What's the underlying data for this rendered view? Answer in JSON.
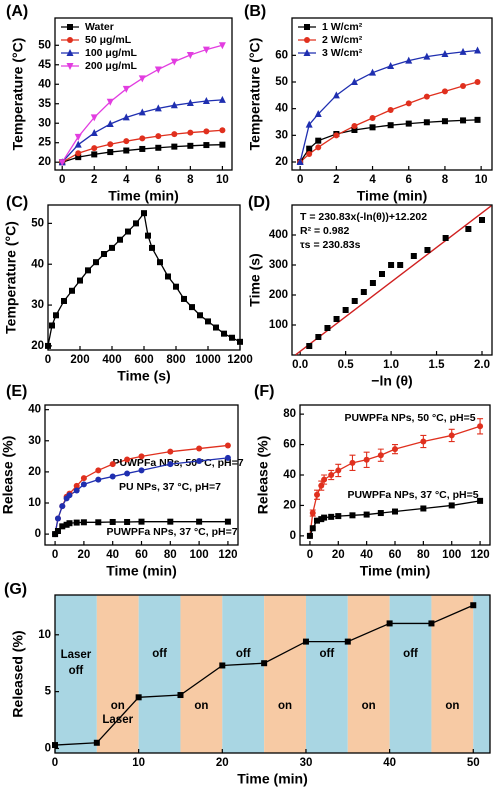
{
  "chart_data": [
    {
      "type": "line",
      "label": "(A)",
      "x_label": "Time (min)",
      "y_label": "Temperature (°C)",
      "xlim": [
        -0.45,
        10.6
      ],
      "ylim": [
        18,
        57
      ],
      "xticks": [
        0,
        2,
        4,
        6,
        8,
        10
      ],
      "yticks": [
        20,
        25,
        30,
        35,
        40,
        45,
        50
      ],
      "legend": "upper left",
      "x": [
        0,
        1,
        2,
        3,
        4,
        5,
        6,
        7,
        8,
        9,
        10
      ],
      "series": [
        {
          "name": "Water",
          "color": "#000000",
          "marker": "square",
          "values": [
            20,
            21.3,
            22.0,
            22.6,
            23.0,
            23.4,
            23.7,
            24.0,
            24.2,
            24.4,
            24.5
          ]
        },
        {
          "name": "50 μg/mL",
          "color": "#e0301e",
          "marker": "circle",
          "values": [
            20,
            22.3,
            23.6,
            24.6,
            25.4,
            26.1,
            26.7,
            27.2,
            27.6,
            27.9,
            28.2
          ]
        },
        {
          "name": "100 μg/mL",
          "color": "#1f2fb0",
          "marker": "triangle",
          "values": [
            20,
            24.5,
            27.5,
            29.8,
            31.5,
            32.8,
            33.8,
            34.6,
            35.2,
            35.7,
            36.0
          ]
        },
        {
          "name": "200 μg/mL",
          "color": "#e23de0",
          "marker": "triangle-down",
          "values": [
            20,
            26.5,
            31.5,
            35.5,
            38.8,
            41.5,
            43.8,
            45.8,
            47.5,
            48.9,
            50.0
          ]
        }
      ]
    },
    {
      "type": "line",
      "label": "(B)",
      "x_label": "Time (min)",
      "y_label": "Temperature (°C)",
      "xlim": [
        -0.45,
        10.6
      ],
      "ylim": [
        17,
        74
      ],
      "xticks": [
        0,
        2,
        4,
        6,
        8,
        10
      ],
      "yticks": [
        20,
        30,
        40,
        50,
        60
      ],
      "legend": "upper left",
      "x": [
        0,
        0.5,
        1,
        2,
        3,
        4,
        5,
        6,
        7,
        8,
        9,
        9.8
      ],
      "series": [
        {
          "name": "1 W/cm²",
          "color": "#000000",
          "marker": "square",
          "values": [
            20,
            25,
            28,
            30.5,
            32,
            33,
            33.8,
            34.4,
            34.9,
            35.3,
            35.6,
            35.8
          ]
        },
        {
          "name": "2 W/cm²",
          "color": "#e0301e",
          "marker": "circle",
          "values": [
            20,
            23,
            25.5,
            30,
            33.5,
            36.5,
            39.5,
            42,
            44.5,
            46.5,
            48.5,
            50
          ]
        },
        {
          "name": "3 W/cm²",
          "color": "#1f2fb0",
          "marker": "triangle",
          "values": [
            20,
            34,
            38,
            45,
            50,
            53.5,
            56,
            58,
            59.5,
            60.5,
            61.3,
            61.8
          ]
        }
      ]
    },
    {
      "type": "line",
      "label": "(C)",
      "x_label": "Time (s)",
      "y_label": "Temperature (°C)",
      "xlim": [
        0,
        1200
      ],
      "ylim": [
        19,
        54.5
      ],
      "xticks": [
        0,
        200,
        400,
        600,
        800,
        1000,
        1200
      ],
      "yticks": [
        20,
        30,
        40,
        50
      ],
      "x": [
        0,
        25,
        50,
        100,
        150,
        200,
        250,
        300,
        350,
        400,
        450,
        500,
        550,
        600,
        625,
        650,
        700,
        750,
        800,
        850,
        900,
        950,
        1000,
        1050,
        1100,
        1150,
        1200
      ],
      "series": [
        {
          "color": "#000000",
          "marker": "square",
          "values": [
            20,
            25,
            27.5,
            31,
            33.5,
            36,
            38.5,
            40.5,
            42.5,
            44,
            46,
            48,
            50,
            52.5,
            47,
            44,
            40.5,
            37,
            34.5,
            31.5,
            29.5,
            27.5,
            26,
            24.5,
            23,
            22,
            21
          ]
        }
      ]
    },
    {
      "type": "scatter",
      "label": "(D)",
      "x_label": "−ln (θ)",
      "y_label": "Time (s)",
      "xlim": [
        -0.09,
        2.11
      ],
      "ylim": [
        0,
        500
      ],
      "xticks": [
        {
          "value": 0,
          "label": "0.0"
        },
        0.5,
        {
          "value": 1,
          "label": "1.0"
        },
        1.5,
        {
          "value": 2,
          "label": "2.0"
        }
      ],
      "yticks": [
        100,
        200,
        300,
        400
      ],
      "annotations": [
        "T = 230.83x(-ln(θ))+12.202",
        "R² = 0.982",
        "τs = 230.83s"
      ],
      "x": [
        0.1,
        0.2,
        0.3,
        0.4,
        0.5,
        0.6,
        0.7,
        0.8,
        0.9,
        1.0,
        1.1,
        1.25,
        1.4,
        1.6,
        1.85,
        2.0
      ],
      "series": [
        {
          "color": "#000000",
          "marker": "square",
          "values": [
            30,
            60,
            90,
            120,
            150,
            180,
            210,
            240,
            270,
            300,
            300,
            330,
            350,
            390,
            420,
            450
          ]
        },
        {
          "color": "#d02020",
          "marker": "none",
          "x": [
            -0.05,
            2.1
          ],
          "values": [
            0.66,
            496.9
          ]
        }
      ]
    },
    {
      "type": "line",
      "label": "(E)",
      "x_label": "Time (min)",
      "y_label": "Release (%)",
      "xlim": [
        -7,
        127
      ],
      "ylim": [
        -3.5,
        41.5
      ],
      "xticks": [
        0,
        20,
        40,
        60,
        80,
        100,
        120
      ],
      "yticks": [
        0,
        10,
        20,
        30,
        40
      ],
      "legend": "annotate",
      "x": [
        0,
        2,
        5,
        8,
        10,
        15,
        20,
        30,
        40,
        50,
        60,
        80,
        100,
        120
      ],
      "series": [
        {
          "name": "PUWPFa NPs, 50 °C, pH=7",
          "color": "#e0301e",
          "marker": "circle",
          "values": [
            0,
            5,
            9,
            12,
            13,
            15.5,
            18,
            20.5,
            22.5,
            24,
            25,
            26.5,
            27.5,
            28.5
          ]
        },
        {
          "name": "PU NPs, 37 °C, pH=7",
          "color": "#1f2fb0",
          "marker": "circle",
          "values": [
            0,
            5,
            9,
            11.5,
            12.5,
            14,
            16,
            17.5,
            18.5,
            19.5,
            20.5,
            22.5,
            23.5,
            24.5
          ]
        },
        {
          "name": "PUWPFa NPs, 37 °C, pH=7",
          "color": "#000000",
          "marker": "square",
          "values": [
            0,
            1,
            2.5,
            3,
            3.5,
            3.7,
            3.8,
            3.8,
            3.9,
            3.9,
            4,
            4,
            4,
            4
          ]
        }
      ]
    },
    {
      "type": "line",
      "label": "(F)",
      "x_label": "Time (min)",
      "y_label": "Release (%)",
      "xlim": [
        -7,
        127
      ],
      "ylim": [
        -6,
        86
      ],
      "xticks": [
        0,
        20,
        40,
        60,
        80,
        100,
        120
      ],
      "yticks": [
        0,
        20,
        40,
        60,
        80
      ],
      "legend": "annotate",
      "x": [
        0,
        2,
        5,
        8,
        10,
        15,
        20,
        30,
        40,
        50,
        60,
        80,
        100,
        120
      ],
      "series": [
        {
          "name": "PUWPFa NPs, 50 °C, pH=5",
          "color": "#e0301e",
          "marker": "circle",
          "values": [
            0,
            15,
            27,
            33,
            37,
            40,
            43,
            48,
            50,
            53,
            57,
            62,
            66,
            72
          ],
          "errors": [
            0,
            2,
            3,
            3,
            3,
            3,
            4,
            5,
            5,
            4,
            3,
            4,
            4,
            5
          ]
        },
        {
          "name": "PUWPFa NPs, 37 °C, pH=5",
          "color": "#000000",
          "marker": "square",
          "values": [
            0,
            5,
            10,
            11,
            12,
            12.5,
            13,
            13.5,
            14,
            15,
            16,
            18,
            20,
            23
          ]
        }
      ]
    },
    {
      "type": "line",
      "label": "(G)",
      "x_label": "Time (min)",
      "y_label": "Released (%)",
      "xlim": [
        0,
        52
      ],
      "ylim": [
        -0.4,
        13.5
      ],
      "xticks": [
        0,
        10,
        20,
        30,
        40,
        50
      ],
      "yticks": [
        0,
        5,
        10
      ],
      "bands": {
        "edges": [
          0,
          5,
          10,
          15,
          20,
          25,
          30,
          35,
          40,
          45,
          50,
          52
        ],
        "colors": [
          "#a9d6e3",
          "#f7caa4"
        ],
        "labels": [
          [
            "Laser",
            "off"
          ],
          [
            "on",
            "Laser"
          ],
          [
            "off"
          ],
          [
            "on"
          ],
          [
            "off"
          ],
          [
            "on"
          ],
          [
            "off"
          ],
          [
            "on"
          ],
          [
            "off"
          ],
          [
            "on"
          ],
          null
        ]
      },
      "x": [
        0,
        5,
        10,
        15,
        20,
        25,
        30,
        35,
        40,
        45,
        50
      ],
      "series": [
        {
          "color": "#000000",
          "marker": "square",
          "values": [
            0.3,
            0.5,
            4.5,
            4.7,
            7.3,
            7.5,
            9.4,
            9.4,
            11,
            11,
            12.6
          ]
        }
      ]
    }
  ]
}
